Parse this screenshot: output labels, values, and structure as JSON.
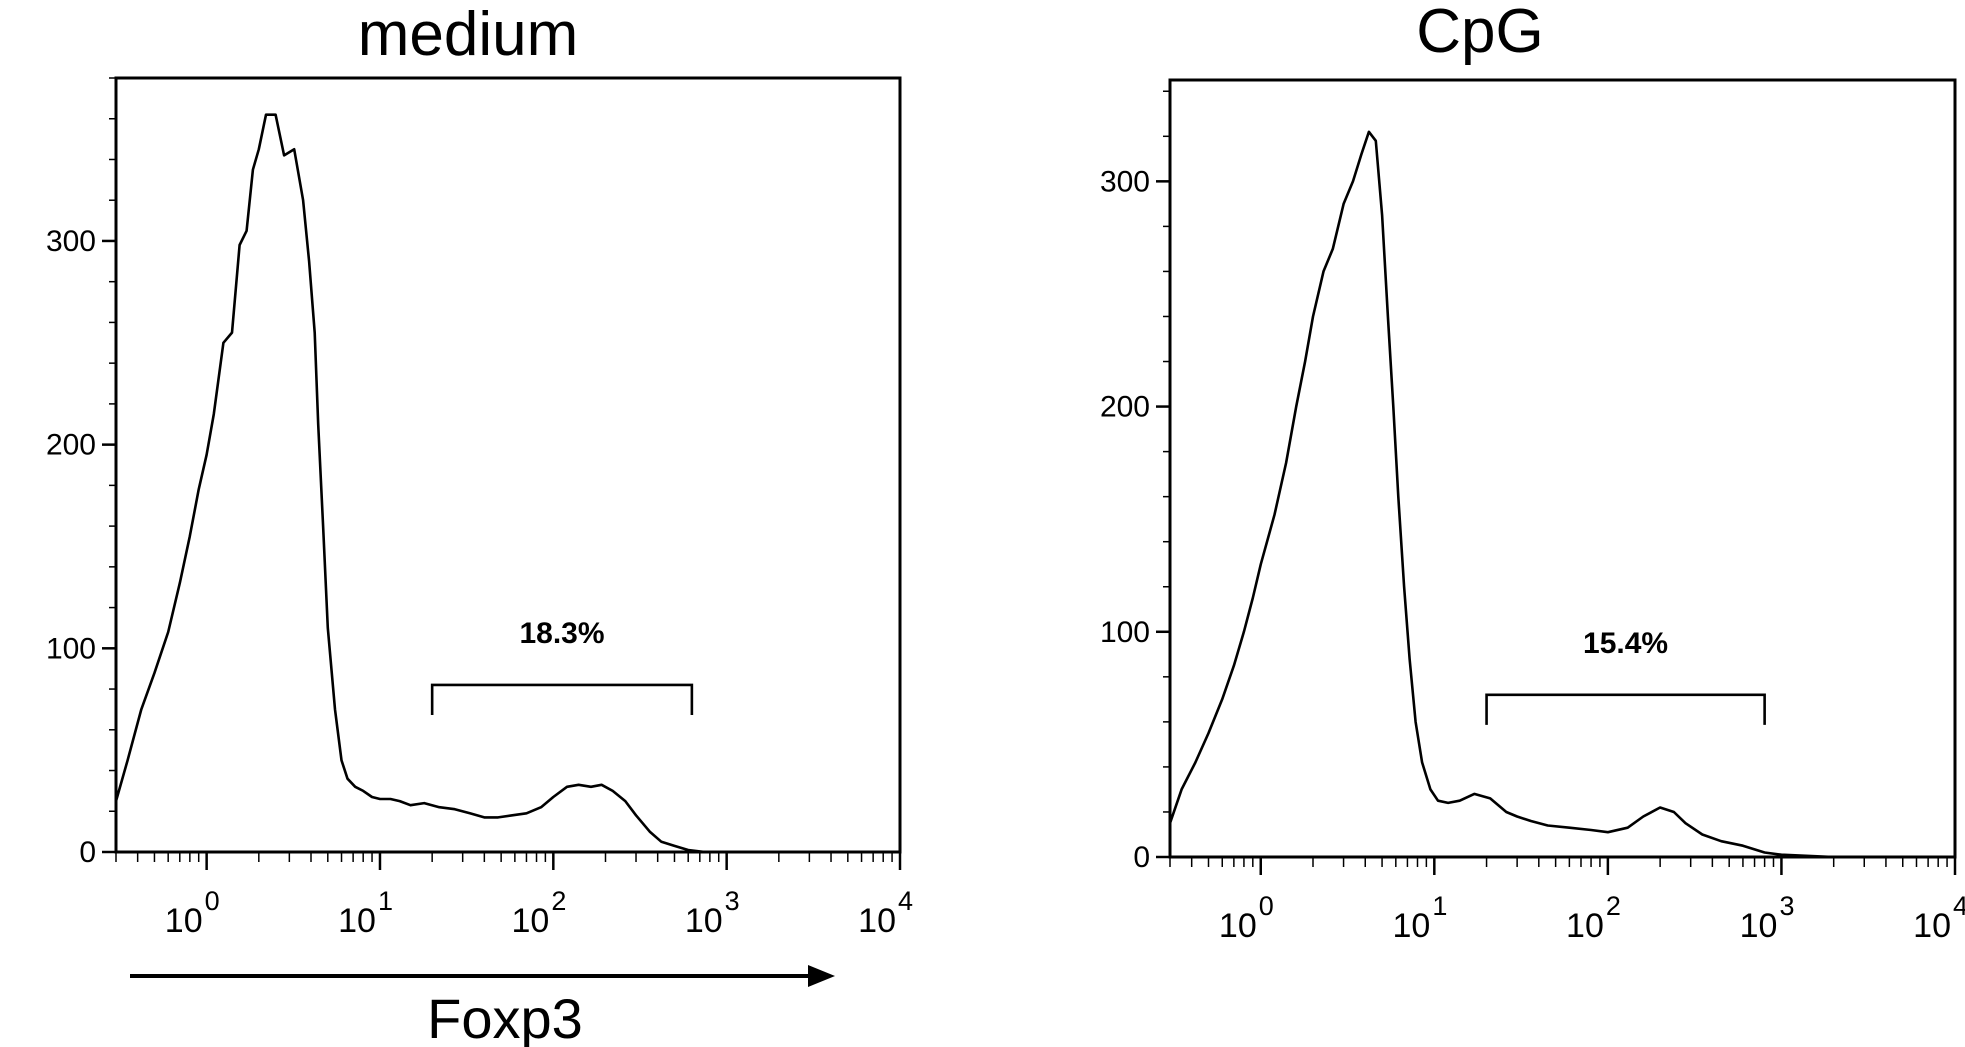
{
  "chart_data": [
    {
      "type": "line",
      "title": "medium",
      "xlabel": "Foxp3",
      "ylabel": "",
      "xscale": "log",
      "xlim": [
        0.3,
        10000
      ],
      "ylim": [
        0,
        380
      ],
      "x_ticks": [
        {
          "value": 1,
          "base": "10",
          "exp": "0"
        },
        {
          "value": 10,
          "base": "10",
          "exp": "1"
        },
        {
          "value": 100,
          "base": "10",
          "exp": "2"
        },
        {
          "value": 1000,
          "base": "10",
          "exp": "3"
        },
        {
          "value": 10000,
          "base": "10",
          "exp": "4"
        }
      ],
      "y_ticks": [
        {
          "value": 0,
          "label": "0"
        },
        {
          "value": 100,
          "label": "100"
        },
        {
          "value": 200,
          "label": "200"
        },
        {
          "value": 300,
          "label": "300"
        }
      ],
      "series": [
        {
          "x": [
            0.3,
            0.35,
            0.42,
            0.5,
            0.6,
            0.7,
            0.8,
            0.9,
            1.0,
            1.1,
            1.25,
            1.4,
            1.55,
            1.7,
            1.85,
            2.0,
            2.2,
            2.5,
            2.8,
            3.2,
            3.6,
            3.9,
            4.2,
            4.4,
            4.7,
            5.0,
            5.5,
            6.0,
            6.5,
            7.2,
            8.0,
            9.0,
            10.0,
            11.5,
            13.0,
            15.0,
            18.0,
            22.0,
            27.0,
            33.0,
            40.0,
            48.0,
            58.0,
            70.0,
            85.0,
            100.0,
            120.0,
            140.0,
            165.0,
            190.0,
            220.0,
            260.0,
            300.0,
            360.0,
            420.0,
            500.0,
            600.0,
            750.0,
            1000.0,
            2000.0,
            5000.0,
            10000.0
          ],
          "y": [
            25,
            45,
            70,
            88,
            108,
            132,
            155,
            178,
            195,
            215,
            250,
            255,
            298,
            305,
            335,
            345,
            362,
            362,
            342,
            345,
            320,
            290,
            255,
            210,
            160,
            110,
            70,
            45,
            36,
            32,
            30,
            27,
            26,
            26,
            25,
            23,
            24,
            22,
            21,
            19,
            17,
            17,
            18,
            19,
            22,
            27,
            32,
            33,
            32,
            33,
            30,
            25,
            18,
            10,
            5,
            3,
            1,
            0,
            0,
            0,
            0,
            0
          ]
        }
      ],
      "gate": {
        "x_start": 20,
        "x_end": 630,
        "y": 82,
        "label": "18.3%"
      }
    },
    {
      "type": "line",
      "title": "CpG",
      "xlabel": "",
      "ylabel": "",
      "xscale": "log",
      "xlim": [
        0.3,
        10000
      ],
      "ylim": [
        0,
        345
      ],
      "x_ticks": [
        {
          "value": 1,
          "base": "10",
          "exp": "0"
        },
        {
          "value": 10,
          "base": "10",
          "exp": "1"
        },
        {
          "value": 100,
          "base": "10",
          "exp": "2"
        },
        {
          "value": 1000,
          "base": "10",
          "exp": "3"
        },
        {
          "value": 10000,
          "base": "10",
          "exp": "4"
        }
      ],
      "y_ticks": [
        {
          "value": 0,
          "label": "0"
        },
        {
          "value": 100,
          "label": "100"
        },
        {
          "value": 200,
          "label": "200"
        },
        {
          "value": 300,
          "label": "300"
        }
      ],
      "series": [
        {
          "x": [
            0.3,
            0.35,
            0.42,
            0.5,
            0.6,
            0.7,
            0.8,
            0.9,
            1.0,
            1.2,
            1.4,
            1.6,
            1.8,
            2.0,
            2.3,
            2.6,
            3.0,
            3.4,
            3.8,
            4.2,
            4.6,
            5.0,
            5.4,
            5.8,
            6.2,
            6.7,
            7.2,
            7.8,
            8.5,
            9.5,
            10.5,
            12.0,
            14.0,
            17.0,
            21.0,
            26.0,
            30.0,
            36.0,
            45.0,
            60.0,
            80.0,
            100.0,
            130.0,
            160.0,
            200.0,
            240.0,
            280.0,
            350.0,
            450.0,
            600.0,
            800.0,
            1000.0,
            2000.0,
            5000.0,
            10000.0
          ],
          "y": [
            15,
            30,
            42,
            55,
            70,
            85,
            100,
            115,
            130,
            152,
            175,
            200,
            220,
            240,
            260,
            270,
            290,
            300,
            312,
            322,
            318,
            285,
            240,
            200,
            160,
            120,
            88,
            60,
            42,
            30,
            25,
            24,
            25,
            28,
            26,
            20,
            18,
            16,
            14,
            13,
            12,
            11,
            13,
            18,
            22,
            20,
            15,
            10,
            7,
            5,
            2,
            1,
            0,
            0,
            0
          ]
        }
      ],
      "gate": {
        "x_start": 20,
        "x_end": 800,
        "y": 72,
        "label": "15.4%"
      }
    }
  ]
}
